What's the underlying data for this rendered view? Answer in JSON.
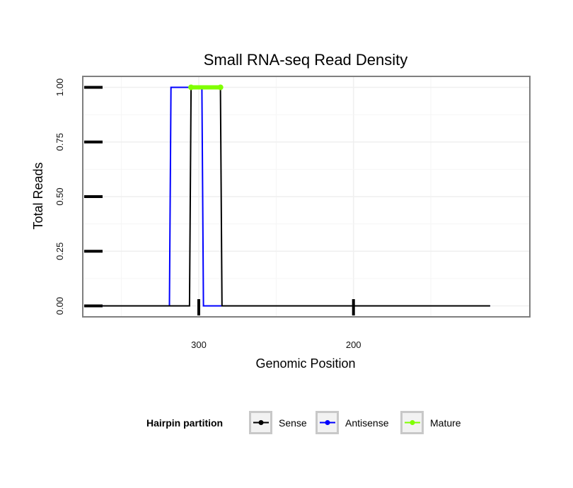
{
  "chart_data": {
    "type": "line",
    "title": "Small RNA-seq Read Density",
    "xlabel": "Genomic Position",
    "ylabel": "Total Reads",
    "x_reversed": true,
    "xlim": [
      375,
      86
    ],
    "ylim": [
      -0.05,
      1.05
    ],
    "x_ticks": [
      300,
      200
    ],
    "x_tick_labels": [
      "300",
      "200"
    ],
    "y_ticks": [
      0,
      0.25,
      0.5,
      0.75,
      1.0
    ],
    "y_tick_labels": [
      "0.00",
      "0.25",
      "0.50",
      "0.75",
      "1.00"
    ],
    "grid": true,
    "legend": {
      "title": "Hairpin partition",
      "position": "bottom",
      "entries": [
        {
          "label": "Sense",
          "color": "#000000"
        },
        {
          "label": "Antisense",
          "color": "#0000ff"
        },
        {
          "label": "Mature",
          "color": "#7fff00"
        }
      ]
    },
    "series": [
      {
        "name": "Sense",
        "color": "#000000",
        "points": [
          [
            362,
            0
          ],
          [
            319,
            0
          ],
          [
            318,
            0
          ],
          [
            316,
            0
          ],
          [
            315,
            0
          ],
          [
            314,
            0
          ],
          [
            306,
            0
          ],
          [
            305,
            1
          ],
          [
            286,
            1
          ],
          [
            285,
            0
          ],
          [
            112,
            0
          ]
        ]
      },
      {
        "name": "Antisense",
        "color": "#0000ff",
        "points": [
          [
            362,
            0
          ],
          [
            319,
            0
          ],
          [
            318,
            1
          ],
          [
            314,
            1
          ],
          [
            313,
            1
          ],
          [
            298,
            1
          ],
          [
            297,
            0
          ],
          [
            285,
            0
          ],
          [
            112,
            0
          ]
        ]
      },
      {
        "name": "Mature",
        "color": "#7fff00",
        "points": [
          [
            305,
            1
          ],
          [
            286,
            1
          ]
        ]
      }
    ]
  }
}
